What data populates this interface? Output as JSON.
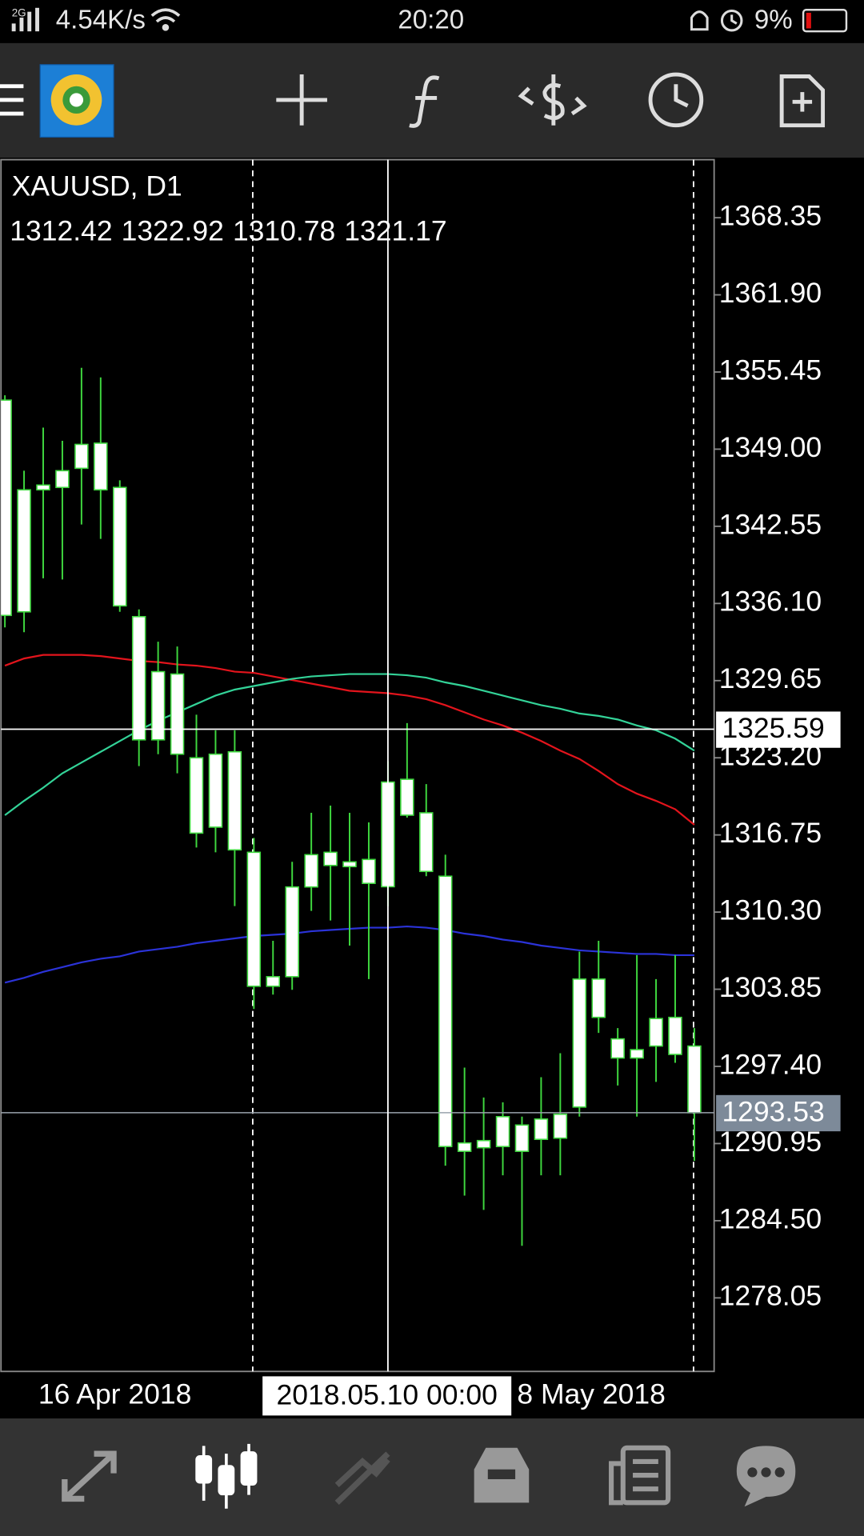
{
  "status_bar": {
    "network": "2G",
    "speed": "4.54K/s",
    "time": "20:20",
    "battery": "9%"
  },
  "chart_data": {
    "type": "candlestick",
    "title": "XAUUSD, D1",
    "categories": [
      null,
      null,
      "16 Apr 2018",
      null,
      null,
      null,
      null,
      null,
      null,
      null,
      null,
      null,
      null,
      null,
      null,
      null,
      null,
      null,
      null,
      null,
      null,
      null,
      null,
      null,
      null,
      null,
      null,
      "8 May 2018",
      null,
      null,
      null,
      null,
      null,
      null,
      null,
      null,
      null
    ],
    "open": [
      1353.1,
      1335.4,
      1345.6,
      1345.8,
      1347.4,
      1349.5,
      1345.8,
      1335.0,
      1324.7,
      1330.2,
      1323.2,
      1317.4,
      1323.7,
      1315.3,
      1304.1,
      1304.9,
      1312.4,
      1315.3,
      1314.5,
      1314.7,
      1312.42,
      1321.4,
      1318.6,
      1313.3,
      1290.3,
      1290.6,
      1290.7,
      1292.5,
      1291.3,
      1291.4,
      1294.0,
      1304.7,
      1299.7,
      1298.1,
      1299.1,
      1301.5,
      1299.1
    ],
    "high": [
      1353.5,
      1347.2,
      1350.8,
      1349.7,
      1355.8,
      1355.0,
      1346.4,
      1335.6,
      1332.9,
      1332.5,
      1326.8,
      1325.5,
      1325.5,
      1316.5,
      1307.9,
      1314.5,
      1318.6,
      1319.2,
      1318.6,
      1317.8,
      1322.92,
      1326.1,
      1321.0,
      1315.1,
      1297.3,
      1294.8,
      1294.4,
      1293.2,
      1296.5,
      1298.5,
      1307.0,
      1307.9,
      1300.6,
      1306.7,
      1304.7,
      1306.7,
      1300.6
    ],
    "low": [
      1334.1,
      1333.7,
      1338.2,
      1338.1,
      1342.7,
      1341.5,
      1335.4,
      1322.5,
      1323.5,
      1321.9,
      1315.7,
      1315.3,
      1310.8,
      1302.2,
      1303.4,
      1303.8,
      1310.4,
      1309.6,
      1307.5,
      1304.7,
      1310.78,
      1318.2,
      1313.3,
      1289.1,
      1286.6,
      1285.4,
      1288.3,
      1282.4,
      1288.3,
      1288.3,
      1293.2,
      1300.2,
      1295.8,
      1293.2,
      1296.1,
      1297.7,
      1289.5
    ],
    "close": [
      1335.1,
      1345.6,
      1346.0,
      1347.2,
      1349.4,
      1345.6,
      1335.9,
      1324.7,
      1330.4,
      1323.5,
      1316.9,
      1323.5,
      1315.5,
      1304.1,
      1304.9,
      1312.4,
      1315.1,
      1314.2,
      1314.1,
      1312.7,
      1321.17,
      1318.4,
      1313.7,
      1290.7,
      1291.0,
      1291.2,
      1293.2,
      1290.3,
      1293.0,
      1293.4,
      1304.7,
      1301.5,
      1298.1,
      1298.8,
      1301.4,
      1298.4,
      1293.53
    ],
    "color": "#3fd83f",
    "body_color": "#ffffff",
    "series": [
      {
        "color": "#e3141c",
        "values": [
          1330.9,
          1331.5,
          1331.8,
          1331.8,
          1331.8,
          1331.7,
          1331.5,
          1331.3,
          1331.2,
          1331.0,
          1330.9,
          1330.7,
          1330.4,
          1330.3,
          1330.0,
          1329.7,
          1329.4,
          1329.1,
          1328.8,
          1328.7,
          1328.6,
          1328.4,
          1328.1,
          1327.6,
          1327.0,
          1326.4,
          1325.9,
          1325.3,
          1324.6,
          1323.8,
          1323.1,
          1322.1,
          1321.0,
          1320.2,
          1319.6,
          1318.9,
          1317.6
        ]
      },
      {
        "color": "#33d398",
        "values": [
          1318.4,
          1319.6,
          1320.7,
          1321.9,
          1322.8,
          1323.7,
          1324.6,
          1325.5,
          1326.3,
          1327.0,
          1327.7,
          1328.4,
          1328.9,
          1329.2,
          1329.5,
          1329.8,
          1330.0,
          1330.1,
          1330.2,
          1330.2,
          1330.2,
          1330.1,
          1329.9,
          1329.5,
          1329.2,
          1328.8,
          1328.4,
          1328.0,
          1327.6,
          1327.3,
          1326.9,
          1326.7,
          1326.4,
          1325.9,
          1325.5,
          1324.8,
          1323.8
        ]
      },
      {
        "color": "#2b33d8",
        "values": [
          1304.4,
          1304.8,
          1305.3,
          1305.7,
          1306.1,
          1306.4,
          1306.6,
          1307.0,
          1307.2,
          1307.4,
          1307.7,
          1307.9,
          1308.1,
          1308.3,
          1308.4,
          1308.5,
          1308.7,
          1308.8,
          1308.9,
          1309.0,
          1309.0,
          1309.1,
          1309.0,
          1308.8,
          1308.5,
          1308.3,
          1308.0,
          1307.8,
          1307.5,
          1307.3,
          1307.1,
          1307.0,
          1306.9,
          1306.8,
          1306.8,
          1306.7,
          1306.7
        ]
      }
    ],
    "ylim": [
      1271.9,
      1373.2
    ],
    "yticks": [
      1368.35,
      {
        "value": 1361.9,
        "label": "1361.90"
      },
      1355.45,
      {
        "value": 1349.0,
        "label": "1349.00"
      },
      1342.55,
      {
        "value": 1336.1,
        "label": "1336.10"
      },
      1329.65,
      {
        "value": 1323.2,
        "label": "1323.20"
      },
      1316.75,
      {
        "value": 1310.3,
        "label": "1310.30"
      },
      1303.85,
      {
        "value": 1297.4,
        "label": "1297.40"
      },
      1290.95,
      {
        "value": 1284.5,
        "label": "1284.50"
      },
      1278.05
    ],
    "crosshair": {
      "price": 1325.59,
      "time": "2018.05.10 00:00"
    },
    "bid": 1293.53
  }
}
